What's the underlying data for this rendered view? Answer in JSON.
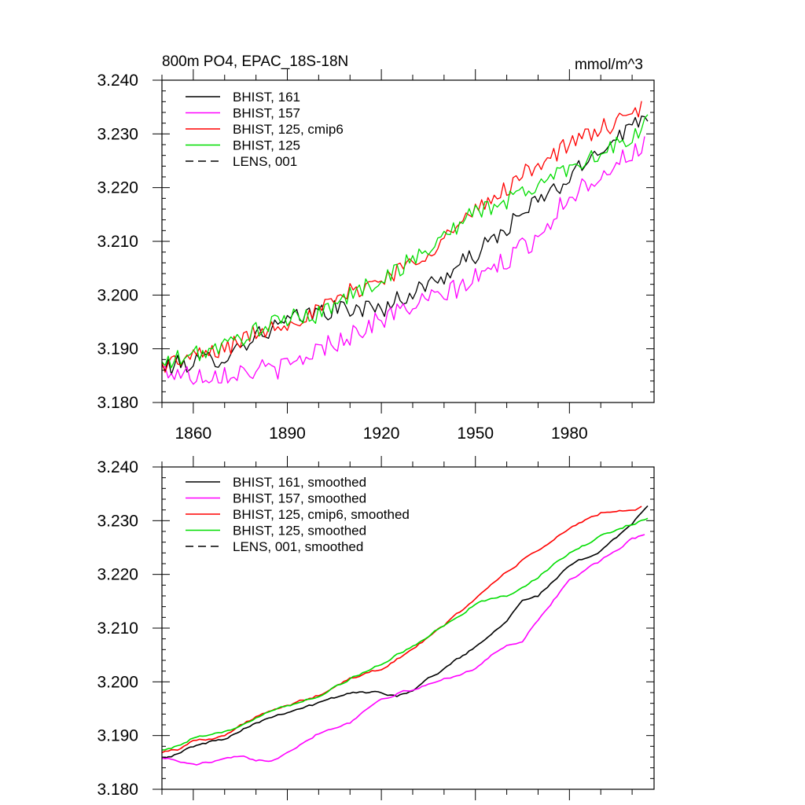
{
  "figure": {
    "title_left": "800m PO4, EPAC_18S-18N",
    "title_right": "mmol/m^3"
  },
  "chart_data": [
    {
      "type": "line",
      "title": "800m PO4, EPAC_18S-18N",
      "units": "mmol/m^3",
      "xlim": [
        1850,
        2007
      ],
      "ylim": [
        3.18,
        3.24
      ],
      "x_ticks": [
        1860,
        1890,
        1920,
        1950,
        1980
      ],
      "x_tick_labels": [
        "1860",
        "1890",
        "1920",
        "1950",
        "1980"
      ],
      "y_ticks": [
        3.18,
        3.19,
        3.2,
        3.21,
        3.22,
        3.23,
        3.24
      ],
      "y_tick_labels": [
        "3.180",
        "3.190",
        "3.200",
        "3.210",
        "3.220",
        "3.230",
        "3.240"
      ],
      "legend_position": "top-left",
      "series": [
        {
          "name": "BHIST, 161",
          "color": "#000000",
          "dash": "solid",
          "noise": 0.0018,
          "x": [
            1850,
            1860,
            1870,
            1880,
            1890,
            1900,
            1910,
            1920,
            1930,
            1940,
            1950,
            1960,
            1970,
            1980,
            1990,
            2000,
            2005
          ],
          "values": [
            3.1865,
            3.1875,
            3.1885,
            3.1925,
            3.195,
            3.197,
            3.1975,
            3.1975,
            3.2005,
            3.2035,
            3.2075,
            3.2125,
            3.2175,
            3.2215,
            3.2275,
            3.2315,
            3.234
          ]
        },
        {
          "name": "BHIST, 157",
          "color": "#ff00ff",
          "dash": "solid",
          "noise": 0.002,
          "x": [
            1850,
            1860,
            1870,
            1880,
            1890,
            1900,
            1910,
            1920,
            1930,
            1940,
            1950,
            1960,
            1970,
            1980,
            1990,
            2000,
            2004
          ],
          "values": [
            3.186,
            3.185,
            3.1855,
            3.186,
            3.1865,
            3.19,
            3.1925,
            3.1955,
            3.198,
            3.2,
            3.203,
            3.2065,
            3.211,
            3.2185,
            3.2225,
            3.2265,
            3.228
          ]
        },
        {
          "name": "BHIST, 125, cmip6",
          "color": "#ff0000",
          "dash": "solid",
          "noise": 0.0017,
          "x": [
            1850,
            1860,
            1870,
            1880,
            1890,
            1900,
            1910,
            1920,
            1930,
            1940,
            1950,
            1960,
            1970,
            1980,
            1990,
            2000,
            2003
          ],
          "values": [
            3.187,
            3.1885,
            3.19,
            3.193,
            3.195,
            3.197,
            3.2005,
            3.203,
            3.206,
            3.2105,
            3.2155,
            3.22,
            3.2245,
            3.228,
            3.231,
            3.233,
            3.235
          ]
        },
        {
          "name": "BHIST, 125",
          "color": "#00dd00",
          "dash": "solid",
          "noise": 0.0017,
          "x": [
            1850,
            1860,
            1870,
            1880,
            1890,
            1900,
            1910,
            1920,
            1930,
            1940,
            1950,
            1960,
            1970,
            1980,
            1990,
            2000,
            2005
          ],
          "values": [
            3.187,
            3.189,
            3.1905,
            3.1935,
            3.1955,
            3.1965,
            3.2,
            3.203,
            3.2065,
            3.211,
            3.2155,
            3.2175,
            3.2205,
            3.224,
            3.2265,
            3.229,
            3.2325
          ]
        },
        {
          "name": "LENS, 001",
          "color": "#000000",
          "dash": "dashed",
          "x": [],
          "values": []
        }
      ]
    },
    {
      "type": "line",
      "xlim": [
        1850,
        2007
      ],
      "ylim": [
        3.18,
        3.24
      ],
      "x_ticks": [
        1860,
        1890,
        1920,
        1950,
        1980
      ],
      "y_ticks": [
        3.18,
        3.19,
        3.2,
        3.21,
        3.22,
        3.23,
        3.24
      ],
      "y_tick_labels": [
        "3.180",
        "3.190",
        "3.200",
        "3.210",
        "3.220",
        "3.230",
        "3.240"
      ],
      "legend_position": "top-left",
      "series": [
        {
          "name": "BHIST, 161, smoothed",
          "color": "#000000",
          "dash": "solid",
          "noise": 0.0005,
          "x": [
            1850,
            1855,
            1860,
            1870,
            1880,
            1890,
            1900,
            1910,
            1920,
            1925,
            1930,
            1940,
            1950,
            1960,
            1965,
            1970,
            1980,
            1990,
            2000,
            2005
          ],
          "values": [
            3.186,
            3.1865,
            3.188,
            3.1895,
            3.1925,
            3.1945,
            3.196,
            3.198,
            3.198,
            3.1975,
            3.1985,
            3.2025,
            3.2065,
            3.2115,
            3.2155,
            3.216,
            3.2215,
            3.2245,
            3.2295,
            3.2325
          ]
        },
        {
          "name": "BHIST, 157, smoothed",
          "color": "#ff00ff",
          "dash": "solid",
          "noise": 0.0005,
          "x": [
            1850,
            1860,
            1870,
            1875,
            1880,
            1885,
            1890,
            1900,
            1910,
            1920,
            1930,
            1940,
            1950,
            1960,
            1965,
            1970,
            1980,
            1990,
            2000,
            2004
          ],
          "values": [
            3.186,
            3.1845,
            3.1855,
            3.186,
            3.1855,
            3.1855,
            3.187,
            3.1905,
            3.1925,
            3.197,
            3.1985,
            3.2005,
            3.2025,
            3.207,
            3.2075,
            3.2115,
            3.219,
            3.2225,
            3.2265,
            3.2275
          ]
        },
        {
          "name": "BHIST, 125, cmip6, smoothed",
          "color": "#ff0000",
          "dash": "solid",
          "noise": 0.0005,
          "x": [
            1850,
            1855,
            1860,
            1870,
            1880,
            1890,
            1900,
            1910,
            1920,
            1930,
            1940,
            1950,
            1960,
            1970,
            1980,
            1990,
            2000,
            2003
          ],
          "values": [
            3.187,
            3.1875,
            3.189,
            3.19,
            3.1935,
            3.1955,
            3.1975,
            3.2005,
            3.2025,
            3.206,
            3.2105,
            3.2155,
            3.2205,
            3.2245,
            3.2285,
            3.2315,
            3.232,
            3.2325
          ]
        },
        {
          "name": "BHIST, 125, smoothed",
          "color": "#00dd00",
          "dash": "solid",
          "noise": 0.0005,
          "x": [
            1850,
            1855,
            1860,
            1870,
            1880,
            1890,
            1900,
            1910,
            1920,
            1930,
            1940,
            1950,
            1955,
            1960,
            1970,
            1980,
            1990,
            2000,
            2005
          ],
          "values": [
            3.1875,
            3.188,
            3.1895,
            3.1905,
            3.1935,
            3.1955,
            3.1975,
            3.2005,
            3.2035,
            3.2065,
            3.2105,
            3.2145,
            3.2155,
            3.216,
            3.2195,
            3.224,
            3.227,
            3.2295,
            3.2305
          ]
        },
        {
          "name": "LENS, 001, smoothed",
          "color": "#000000",
          "dash": "dashed",
          "x": [],
          "values": []
        }
      ]
    }
  ]
}
